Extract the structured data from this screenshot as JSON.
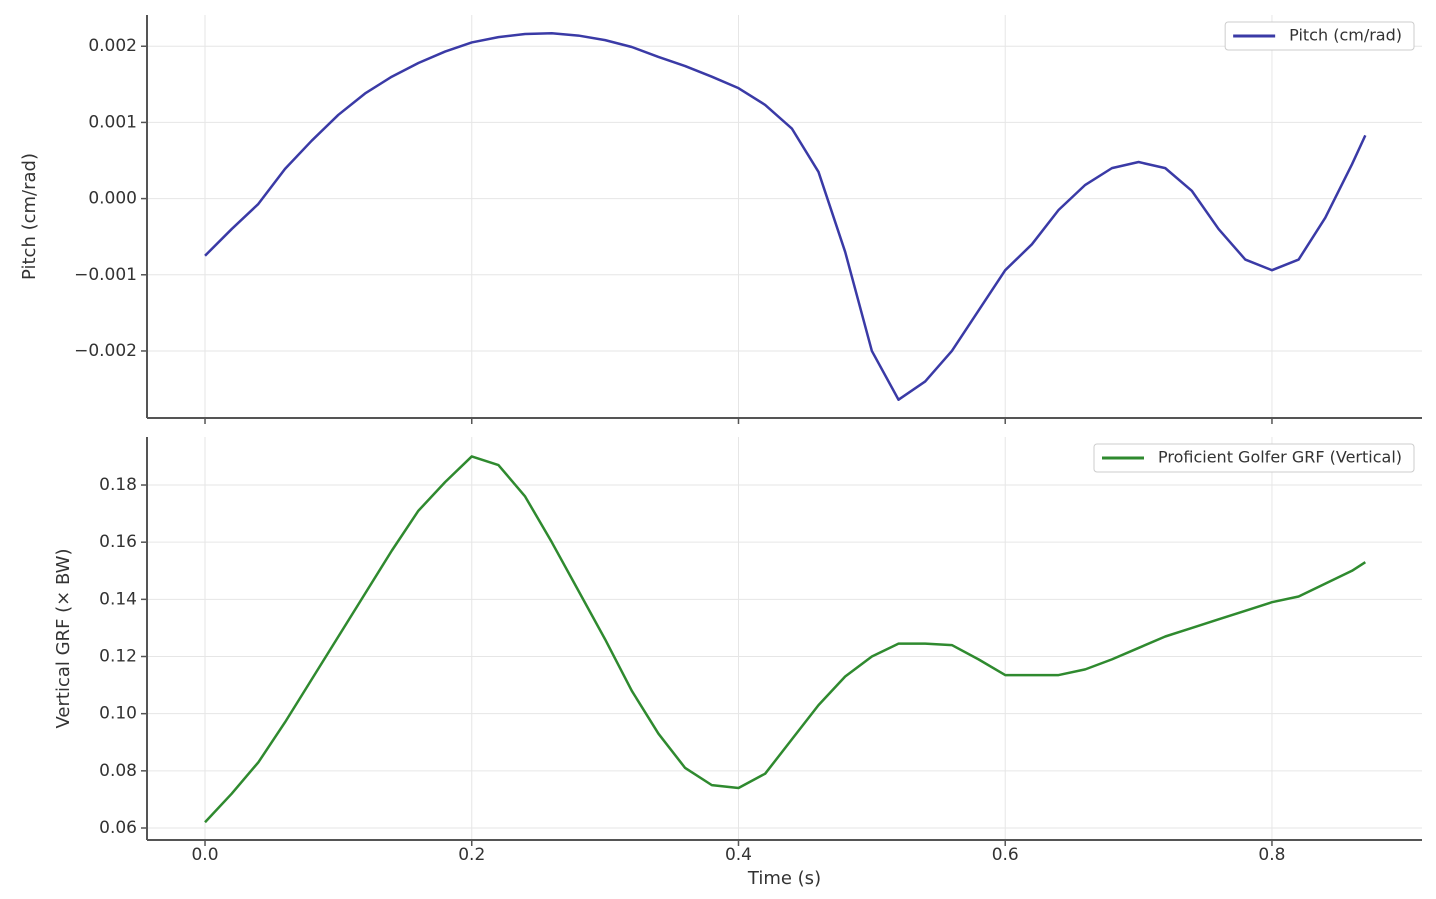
{
  "chart_data": [
    {
      "type": "line",
      "ylabel": "Pitch (cm/rad)",
      "x": [
        0,
        0.02,
        0.04,
        0.06,
        0.08,
        0.1,
        0.12,
        0.14,
        0.16,
        0.18,
        0.2,
        0.22,
        0.24,
        0.26,
        0.28,
        0.3,
        0.32,
        0.34,
        0.36,
        0.38,
        0.4,
        0.42,
        0.44,
        0.46,
        0.48,
        0.5,
        0.52,
        0.54,
        0.56,
        0.58,
        0.6,
        0.62,
        0.64,
        0.66,
        0.68,
        0.7,
        0.72,
        0.74,
        0.76,
        0.78,
        0.8,
        0.82,
        0.84,
        0.86,
        0.87
      ],
      "series": [
        {
          "name": "Pitch (cm/rad)",
          "color": "#3a3aa6",
          "values": [
            -0.00075,
            -0.0004,
            -7e-05,
            0.00039,
            0.00076,
            0.0011,
            0.00138,
            0.0016,
            0.00178,
            0.00193,
            0.00205,
            0.00212,
            0.00216,
            0.00217,
            0.00214,
            0.00208,
            0.00199,
            0.00186,
            0.00174,
            0.0016,
            0.00145,
            0.00123,
            0.00092,
            0.00035,
            -0.0007,
            -0.002,
            -0.00264,
            -0.0024,
            -0.002,
            -0.00147,
            -0.00094,
            -0.0006,
            -0.00015,
            0.00018,
            0.0004,
            0.00048,
            0.0004,
            0.0001,
            -0.0004,
            -0.0008,
            -0.00094,
            -0.0008,
            -0.00025,
            0.00045,
            0.00083
          ]
        }
      ],
      "xlim": [
        -0.0435,
        0.9125
      ],
      "ylim": [
        -0.00288,
        0.00241
      ],
      "yticks": [
        {
          "value": -0.002,
          "label": "−0.002"
        },
        {
          "value": -0.001,
          "label": "−0.001"
        },
        {
          "value": 0,
          "label": "0.000"
        },
        0.001,
        0.002
      ],
      "grid": true,
      "legend": "upper right"
    },
    {
      "type": "line",
      "ylabel": "Vertical GRF (× BW)",
      "xlabel": "Time (s)",
      "x": [
        0,
        0.02,
        0.04,
        0.06,
        0.08,
        0.1,
        0.12,
        0.14,
        0.16,
        0.18,
        0.2,
        0.22,
        0.24,
        0.26,
        0.28,
        0.3,
        0.32,
        0.34,
        0.36,
        0.38,
        0.4,
        0.42,
        0.44,
        0.46,
        0.48,
        0.5,
        0.52,
        0.54,
        0.56,
        0.58,
        0.6,
        0.62,
        0.64,
        0.66,
        0.68,
        0.7,
        0.72,
        0.74,
        0.76,
        0.78,
        0.8,
        0.82,
        0.84,
        0.86,
        0.87
      ],
      "series": [
        {
          "name": "Proficient Golfer GRF (Vertical)",
          "color": "#2f8a2f",
          "values": [
            0.062,
            0.072,
            0.083,
            0.097,
            0.112,
            0.127,
            0.142,
            0.157,
            0.171,
            0.181,
            0.19,
            0.187,
            0.176,
            0.16,
            0.143,
            0.126,
            0.108,
            0.093,
            0.081,
            0.075,
            0.074,
            0.079,
            0.091,
            0.103,
            0.113,
            0.12,
            0.1245,
            0.1245,
            0.124,
            0.119,
            0.1135,
            0.1135,
            0.1135,
            0.1155,
            0.119,
            0.123,
            0.127,
            0.13,
            0.133,
            0.136,
            0.139,
            0.141,
            0.1455,
            0.15,
            0.153
          ]
        }
      ],
      "xlim": [
        -0.0435,
        0.9125
      ],
      "ylim": [
        0.0558,
        0.1968
      ],
      "xticks": [
        {
          "value": 0,
          "label": "0.0"
        },
        0.2,
        0.4,
        0.6,
        0.8
      ],
      "yticks": [
        0.06,
        0.08,
        {
          "value": 0.1,
          "label": "0.10"
        },
        0.12,
        0.14,
        0.16,
        0.18
      ],
      "grid": true,
      "legend": "upper right"
    }
  ]
}
